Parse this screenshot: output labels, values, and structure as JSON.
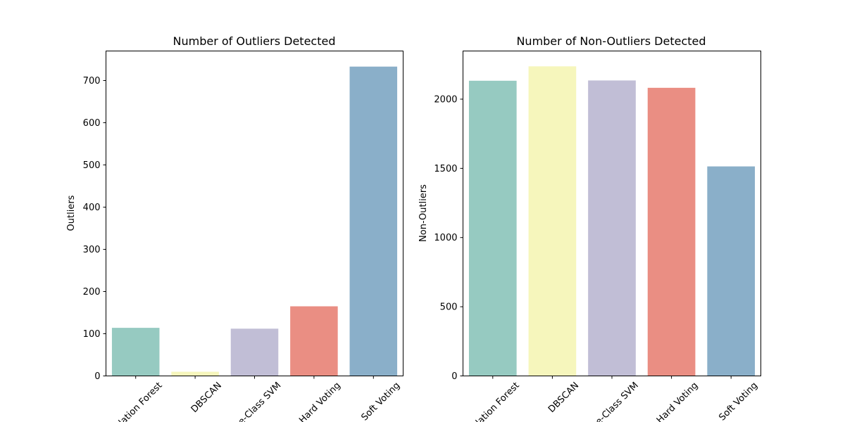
{
  "chart_data": [
    {
      "type": "bar",
      "title": "Number of Outliers Detected",
      "xlabel": "",
      "ylabel": "Outliers",
      "categories": [
        "Isolation Forest",
        "DBSCAN",
        "One-Class SVM",
        "Hard Voting",
        "Soft Voting"
      ],
      "values": [
        114,
        10,
        112,
        165,
        733
      ],
      "colors": [
        "#96cac1",
        "#f6f6bc",
        "#c1bed6",
        "#ea8e83",
        "#8aafc9"
      ],
      "ylim": [
        0,
        770
      ],
      "yticks": [
        0,
        100,
        200,
        300,
        400,
        500,
        600,
        700
      ],
      "grid": false
    },
    {
      "type": "bar",
      "title": "Number of Non-Outliers Detected",
      "xlabel": "",
      "ylabel": "Non-Outliers",
      "categories": [
        "Isolation Forest",
        "DBSCAN",
        "One-Class SVM",
        "Hard Voting",
        "Soft Voting"
      ],
      "values": [
        2133,
        2237,
        2135,
        2082,
        1514
      ],
      "colors": [
        "#96cac1",
        "#f6f6bc",
        "#c1bed6",
        "#ea8e83",
        "#8aafc9"
      ],
      "ylim": [
        0,
        2348
      ],
      "yticks": [
        0,
        500,
        1000,
        1500,
        2000
      ],
      "grid": false
    }
  ]
}
